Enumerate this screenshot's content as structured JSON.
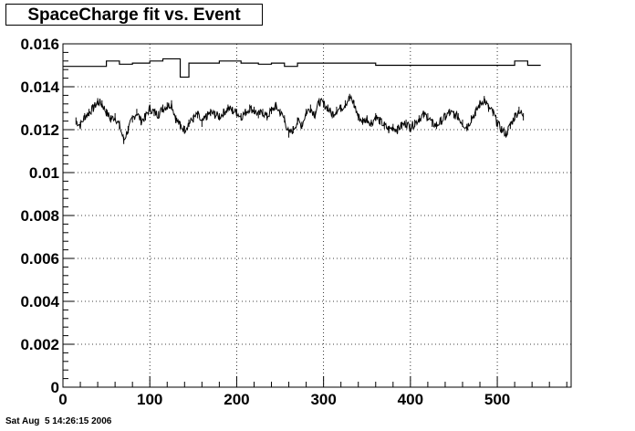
{
  "title": "SpaceCharge fit vs. Event",
  "timestamp": "Sat Aug  5 14:26:15 2006",
  "chart_data": {
    "type": "line",
    "title": "SpaceCharge fit vs. Event",
    "xlabel": "",
    "ylabel": "",
    "xlim": [
      0,
      585
    ],
    "ylim": [
      0,
      0.016
    ],
    "grid": true,
    "x_ticks": [
      0,
      100,
      200,
      300,
      400,
      500
    ],
    "x_tick_labels": [
      "0",
      "100",
      "200",
      "300",
      "400",
      "500"
    ],
    "y_ticks": [
      0,
      0.002,
      0.004,
      0.006,
      0.008,
      0.01,
      0.012,
      0.014,
      0.016
    ],
    "y_tick_labels": [
      "0",
      "0.002",
      "0.004",
      "0.006",
      "0.008",
      "0.01",
      "0.012",
      "0.014",
      "0.016"
    ],
    "series": [
      {
        "style": "step",
        "x": [
          0,
          20,
          50,
          65,
          80,
          85,
          100,
          115,
          118,
          125,
          135,
          145,
          150,
          165,
          180,
          205,
          225,
          240,
          255,
          270,
          285,
          300,
          330,
          345,
          360,
          380,
          395,
          410,
          430,
          450,
          465,
          480,
          500,
          520,
          535,
          545
        ],
        "values": [
          0.01495,
          0.01495,
          0.0152,
          0.01505,
          0.0151,
          0.0151,
          0.0152,
          0.0153,
          0.0153,
          0.0153,
          0.01445,
          0.0151,
          0.0151,
          0.0151,
          0.0152,
          0.0151,
          0.01505,
          0.0151,
          0.01495,
          0.0151,
          0.0151,
          0.0151,
          0.0151,
          0.0151,
          0.015,
          0.015,
          0.015,
          0.015,
          0.015,
          0.015,
          0.015,
          0.015,
          0.015,
          0.0152,
          0.015,
          0.015
        ]
      },
      {
        "style": "noisy",
        "x": [
          15,
          20,
          25,
          30,
          35,
          40,
          45,
          50,
          55,
          60,
          65,
          70,
          75,
          80,
          85,
          90,
          95,
          100,
          105,
          110,
          115,
          120,
          125,
          130,
          135,
          140,
          145,
          150,
          155,
          160,
          165,
          170,
          175,
          180,
          185,
          190,
          195,
          200,
          205,
          210,
          215,
          220,
          225,
          230,
          235,
          240,
          245,
          250,
          255,
          260,
          265,
          270,
          275,
          280,
          285,
          290,
          295,
          300,
          305,
          310,
          315,
          320,
          325,
          330,
          335,
          340,
          345,
          350,
          355,
          360,
          365,
          370,
          375,
          380,
          385,
          390,
          395,
          400,
          405,
          410,
          415,
          420,
          425,
          430,
          435,
          440,
          445,
          450,
          455,
          460,
          465,
          470,
          475,
          480,
          485,
          490,
          495,
          500,
          505,
          510,
          515,
          520,
          525,
          530
        ],
        "values": [
          0.0124,
          0.0122,
          0.0126,
          0.0128,
          0.013,
          0.0133,
          0.0132,
          0.0128,
          0.0125,
          0.0126,
          0.0122,
          0.0115,
          0.012,
          0.0125,
          0.0128,
          0.0124,
          0.0126,
          0.013,
          0.0128,
          0.0127,
          0.013,
          0.0131,
          0.0132,
          0.0125,
          0.0122,
          0.012,
          0.0123,
          0.0125,
          0.0127,
          0.0123,
          0.0126,
          0.0128,
          0.0127,
          0.0126,
          0.0128,
          0.013,
          0.0129,
          0.0128,
          0.0126,
          0.0128,
          0.013,
          0.0129,
          0.0127,
          0.0128,
          0.0126,
          0.0129,
          0.0131,
          0.0128,
          0.0125,
          0.0118,
          0.012,
          0.0124,
          0.0122,
          0.0128,
          0.013,
          0.0127,
          0.0133,
          0.0132,
          0.013,
          0.0127,
          0.0129,
          0.013,
          0.0132,
          0.0135,
          0.0132,
          0.0126,
          0.0124,
          0.0125,
          0.0123,
          0.0126,
          0.0124,
          0.0122,
          0.012,
          0.0121,
          0.012,
          0.0122,
          0.0123,
          0.0121,
          0.0123,
          0.0125,
          0.0127,
          0.0126,
          0.0123,
          0.0122,
          0.0124,
          0.0126,
          0.0128,
          0.0127,
          0.0126,
          0.0123,
          0.0121,
          0.0125,
          0.0128,
          0.0132,
          0.0134,
          0.013,
          0.0128,
          0.0123,
          0.012,
          0.0118,
          0.0122,
          0.0126,
          0.0129,
          0.0126
        ]
      }
    ]
  }
}
